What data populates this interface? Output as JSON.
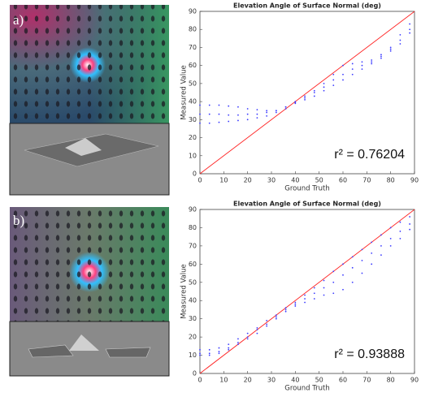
{
  "chart_data": [
    {
      "type": "scatter",
      "panel_label": "a)",
      "title": "Elevation Angle of Surface Normal (deg)",
      "x_label": "Ground Truth",
      "y_label": "Measured Value",
      "annotation": "r² = 0.76204",
      "x": [
        0,
        4,
        8,
        12,
        16,
        20,
        24,
        28,
        32,
        36,
        40,
        44,
        48,
        52,
        56,
        60,
        64,
        68,
        72,
        76,
        80,
        84,
        88
      ],
      "series": [
        {
          "color": "#3a3aff",
          "values": [
            38,
            38,
            38,
            37.5,
            37,
            36,
            35.5,
            35,
            35,
            37,
            40,
            43,
            46,
            50,
            55,
            60,
            61,
            62,
            63,
            66,
            70,
            77,
            83
          ]
        },
        {
          "color": "#3a3aff",
          "values": [
            33,
            33,
            33,
            32.5,
            32.5,
            33,
            33,
            34,
            35,
            37,
            39.5,
            42,
            45,
            48,
            52,
            55,
            58,
            60,
            62,
            65,
            69,
            74,
            80
          ]
        },
        {
          "color": "#3a3aff",
          "values": [
            28,
            28,
            28.5,
            29,
            29.5,
            30,
            31,
            32,
            34,
            36,
            39,
            41,
            43,
            46,
            49,
            52,
            55,
            58,
            61,
            64,
            68,
            72,
            78
          ]
        }
      ],
      "line_color": "#ff2020",
      "xlim": [
        0,
        90
      ],
      "ylim": [
        0,
        90
      ],
      "xticks": [
        0,
        10,
        20,
        30,
        40,
        50,
        60,
        70,
        80,
        90
      ],
      "yticks": [
        0,
        10,
        20,
        30,
        40,
        50,
        60,
        70,
        80,
        90
      ]
    },
    {
      "type": "scatter",
      "panel_label": "b)",
      "title": "Elevation Angle of Surface Normal (deg)",
      "x_label": "Ground Truth",
      "y_label": "Measured Value",
      "annotation": "r² = 0.93888",
      "x": [
        0,
        4,
        8,
        12,
        16,
        20,
        24,
        28,
        32,
        36,
        40,
        44,
        48,
        52,
        56,
        60,
        64,
        68,
        72,
        76,
        80,
        84,
        88
      ],
      "series": [
        {
          "color": "#3a3aff",
          "values": [
            13,
            13,
            14,
            16,
            19,
            22,
            25,
            29,
            32,
            36,
            39,
            43,
            47,
            51,
            56,
            60,
            64,
            68,
            72,
            76,
            80,
            83,
            86
          ]
        },
        {
          "color": "#3a3aff",
          "values": [
            11,
            11,
            12,
            14,
            17,
            20,
            24,
            27,
            31,
            35,
            38,
            41,
            44,
            47,
            50,
            54,
            58,
            62,
            66,
            70,
            74,
            78,
            82
          ]
        },
        {
          "color": "#3a3aff",
          "values": [
            10,
            10,
            11,
            13,
            16,
            19,
            22,
            26,
            30,
            34,
            37,
            39,
            41,
            43,
            44,
            46,
            50,
            55,
            60,
            65,
            70,
            74,
            79
          ]
        }
      ],
      "line_color": "#ff2020",
      "xlim": [
        0,
        90
      ],
      "ylim": [
        0,
        90
      ],
      "xticks": [
        0,
        10,
        20,
        30,
        40,
        50,
        60,
        70,
        80,
        90
      ],
      "yticks": [
        0,
        10,
        20,
        30,
        40,
        50,
        60,
        70,
        80,
        90
      ]
    }
  ]
}
